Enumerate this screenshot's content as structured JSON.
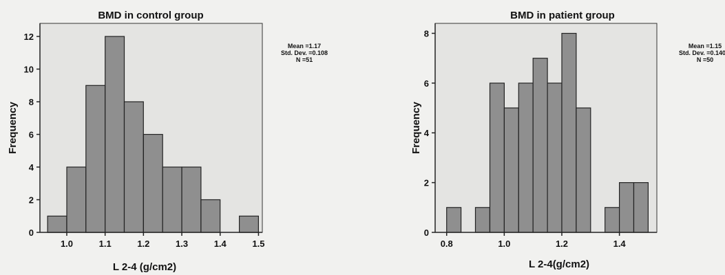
{
  "chart_data": [
    {
      "type": "histogram",
      "title": "BMD in control group",
      "xlabel": "L 2-4 (g/cm2)",
      "ylabel": "Frequency",
      "bin_width": 0.05,
      "bin_centers": [
        0.975,
        1.025,
        1.075,
        1.125,
        1.175,
        1.225,
        1.275,
        1.325,
        1.375,
        1.425,
        1.475
      ],
      "values": [
        1,
        4,
        9,
        12,
        8,
        6,
        4,
        4,
        2,
        0,
        1
      ],
      "xlim": [
        0.93,
        1.51
      ],
      "ylim": [
        0,
        12.8
      ],
      "xticks": [
        1.0,
        1.1,
        1.2,
        1.3,
        1.4,
        1.5
      ],
      "xtick_labels": [
        "1.0",
        "1.1",
        "1.2",
        "1.3",
        "1.4",
        "1.5"
      ],
      "yticks": [
        0,
        2,
        4,
        6,
        8,
        10,
        12
      ],
      "stats": {
        "mean": "Mean =1.17",
        "std": "Std. Dev. =0.108",
        "n": "N =51"
      }
    },
    {
      "type": "histogram",
      "title": "BMD in patient group",
      "xlabel": "L 2-4(g/cm2)",
      "ylabel": "Frequency",
      "bin_width": 0.05,
      "bin_centers": [
        0.825,
        0.875,
        0.925,
        0.975,
        1.025,
        1.075,
        1.125,
        1.175,
        1.225,
        1.275,
        1.325,
        1.375,
        1.425,
        1.475
      ],
      "values": [
        1,
        0,
        1,
        6,
        5,
        6,
        7,
        6,
        8,
        5,
        0,
        1,
        2,
        2
      ],
      "xlim": [
        0.76,
        1.53
      ],
      "ylim": [
        0,
        8.4
      ],
      "xticks": [
        0.8,
        1.0,
        1.2,
        1.4
      ],
      "xtick_labels": [
        "0.8",
        "1.0",
        "1.2",
        "1.4"
      ],
      "yticks": [
        0,
        2,
        4,
        6,
        8
      ],
      "stats": {
        "mean": "Mean =1.15",
        "std": "Std. Dev. =0.140",
        "n": "N =50"
      }
    }
  ]
}
